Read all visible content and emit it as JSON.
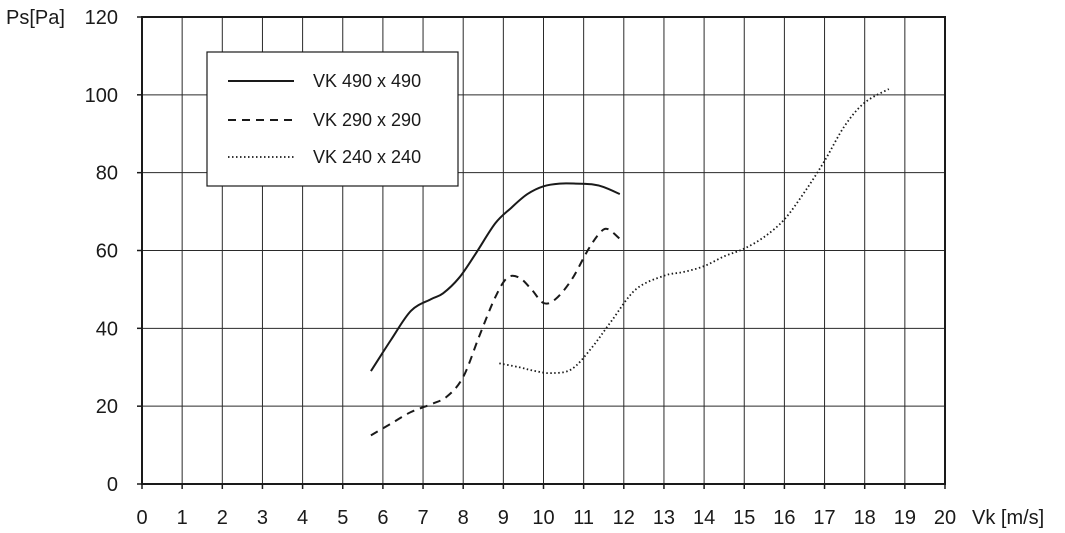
{
  "chart_data": {
    "type": "line",
    "title": "",
    "xlabel": "Vk [m/s]",
    "ylabel": "Ps[Pa]",
    "xlim": [
      0,
      20
    ],
    "ylim": [
      0,
      120
    ],
    "x_ticks": [
      "0",
      "1",
      "2",
      "3",
      "4",
      "5",
      "6",
      "7",
      "8",
      "9",
      "10",
      "11",
      "12",
      "13",
      "14",
      "15",
      "16",
      "17",
      "18",
      "19",
      "20"
    ],
    "y_ticks": [
      "0",
      "20",
      "40",
      "60",
      "80",
      "100",
      "120"
    ],
    "grid": true,
    "legend_position": "top-left",
    "series": [
      {
        "name": "VK 490 x 490",
        "line_style": "solid",
        "color": "#1a1a1a",
        "points": [
          [
            5.7,
            29
          ],
          [
            6.2,
            37
          ],
          [
            6.7,
            44.5
          ],
          [
            7.2,
            47.5
          ],
          [
            7.5,
            49
          ],
          [
            7.9,
            53
          ],
          [
            8.3,
            59
          ],
          [
            8.8,
            67
          ],
          [
            9.2,
            71
          ],
          [
            9.6,
            74.5
          ],
          [
            10.0,
            76.5
          ],
          [
            10.4,
            77.2
          ],
          [
            10.8,
            77.2
          ],
          [
            11.2,
            77
          ],
          [
            11.5,
            76.3
          ],
          [
            11.9,
            74.5
          ]
        ]
      },
      {
        "name": "VK 290 x 290",
        "line_style": "dashed",
        "color": "#1a1a1a",
        "points": [
          [
            5.7,
            12.5
          ],
          [
            6.2,
            15.5
          ],
          [
            6.7,
            18.5
          ],
          [
            7.2,
            20.5
          ],
          [
            7.6,
            22.5
          ],
          [
            8.0,
            27.5
          ],
          [
            8.4,
            38
          ],
          [
            8.8,
            48
          ],
          [
            9.1,
            53
          ],
          [
            9.4,
            53
          ],
          [
            9.7,
            50
          ],
          [
            10.0,
            46.5
          ],
          [
            10.3,
            47.5
          ],
          [
            10.7,
            52.5
          ],
          [
            11.1,
            60
          ],
          [
            11.4,
            64.5
          ],
          [
            11.6,
            65.5
          ],
          [
            11.9,
            63
          ]
        ]
      },
      {
        "name": "VK 240 x 240",
        "line_style": "dotted",
        "color": "#1a1a1a",
        "points": [
          [
            8.9,
            31
          ],
          [
            9.4,
            30
          ],
          [
            9.8,
            29
          ],
          [
            10.2,
            28.5
          ],
          [
            10.7,
            29.5
          ],
          [
            11.2,
            35
          ],
          [
            11.7,
            42
          ],
          [
            12.3,
            50
          ],
          [
            13.0,
            53.5
          ],
          [
            13.5,
            54.5
          ],
          [
            14.0,
            56
          ],
          [
            14.5,
            58.5
          ],
          [
            15.0,
            60.5
          ],
          [
            15.5,
            63.5
          ],
          [
            16.0,
            68
          ],
          [
            16.5,
            75
          ],
          [
            17.0,
            83
          ],
          [
            17.5,
            92
          ],
          [
            18.0,
            98
          ],
          [
            18.6,
            101.5
          ]
        ]
      }
    ]
  }
}
